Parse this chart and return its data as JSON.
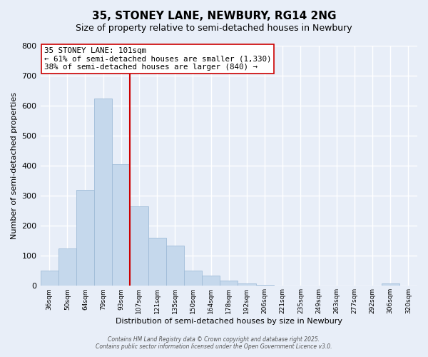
{
  "title": "35, STONEY LANE, NEWBURY, RG14 2NG",
  "subtitle": "Size of property relative to semi-detached houses in Newbury",
  "xlabel": "Distribution of semi-detached houses by size in Newbury",
  "ylabel": "Number of semi-detached properties",
  "bin_labels": [
    "36sqm",
    "50sqm",
    "64sqm",
    "79sqm",
    "93sqm",
    "107sqm",
    "121sqm",
    "135sqm",
    "150sqm",
    "164sqm",
    "178sqm",
    "192sqm",
    "206sqm",
    "221sqm",
    "235sqm",
    "249sqm",
    "263sqm",
    "277sqm",
    "292sqm",
    "306sqm",
    "320sqm"
  ],
  "bar_values": [
    50,
    125,
    320,
    625,
    405,
    265,
    160,
    135,
    50,
    35,
    18,
    8,
    2,
    0,
    0,
    0,
    1,
    0,
    0,
    7,
    0
  ],
  "bar_color": "#c5d8ec",
  "bar_edge_color": "#a0bcd8",
  "vline_x": 4.5,
  "vline_color": "#cc0000",
  "annotation_title": "35 STONEY LANE: 101sqm",
  "annotation_line1": "← 61% of semi-detached houses are smaller (1,330)",
  "annotation_line2": "38% of semi-detached houses are larger (840) →",
  "annotation_box_color": "#ffffff",
  "annotation_box_edge": "#cc0000",
  "ylim": [
    0,
    800
  ],
  "yticks": [
    0,
    100,
    200,
    300,
    400,
    500,
    600,
    700,
    800
  ],
  "footer_line1": "Contains HM Land Registry data © Crown copyright and database right 2025.",
  "footer_line2": "Contains public sector information licensed under the Open Government Licence v3.0.",
  "background_color": "#e8eef8",
  "grid_color": "#ffffff"
}
